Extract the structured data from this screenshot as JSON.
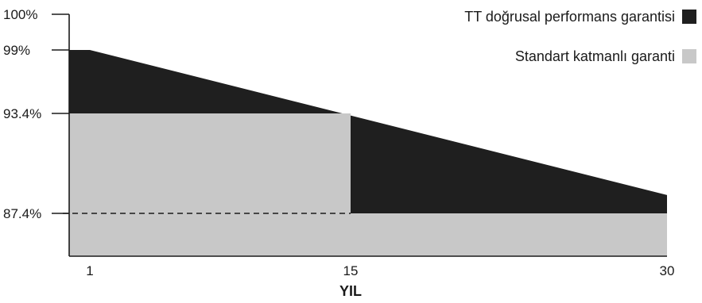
{
  "chart_data": {
    "type": "area",
    "title": "",
    "xlabel": "YIL",
    "ylabel": "",
    "xlim": [
      0,
      30
    ],
    "ylim": [
      85.5,
      100
    ],
    "x_ticks": [
      {
        "value": 1,
        "label": "1"
      },
      {
        "value": 15,
        "label": "15"
      },
      {
        "value": 30,
        "label": "30"
      }
    ],
    "y_ticks": [
      {
        "value": 100,
        "label": "100%"
      },
      {
        "value": 99,
        "label": "99%"
      },
      {
        "value": 93.4,
        "label": "93.4%"
      },
      {
        "value": 87.4,
        "label": "87.4%"
      }
    ],
    "reference_line": {
      "y": 87.4,
      "style": "dashed",
      "x_range": [
        0,
        15
      ]
    },
    "grid": false,
    "legend_position": "top-right",
    "series": [
      {
        "name": "TT doğrusal performans garantisi",
        "color": "#1f1f1f",
        "x": [
          0,
          1,
          30
        ],
        "y": [
          99,
          99,
          88.5
        ]
      },
      {
        "name": "Standart katmanlı garanti",
        "color": "#c8c8c8",
        "x": [
          0,
          15,
          15,
          30
        ],
        "y": [
          93.4,
          93.4,
          87.4,
          87.4
        ]
      }
    ]
  }
}
